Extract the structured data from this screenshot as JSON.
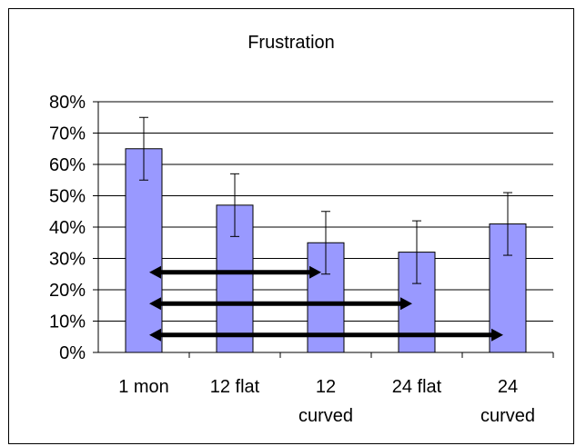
{
  "chart_data": {
    "type": "bar",
    "title": "Frustration",
    "xlabel": "",
    "ylabel": "",
    "ylim": [
      0,
      0.8
    ],
    "yticks": [
      "0%",
      "10%",
      "20%",
      "30%",
      "40%",
      "50%",
      "60%",
      "70%",
      "80%"
    ],
    "categories": [
      [
        "1 mon"
      ],
      [
        "12 flat"
      ],
      [
        "12",
        "curved"
      ],
      [
        "24 flat"
      ],
      [
        "24",
        "curved"
      ]
    ],
    "values": [
      0.65,
      0.47,
      0.35,
      0.32,
      0.41
    ],
    "error_low": [
      0.55,
      0.37,
      0.25,
      0.22,
      0.31
    ],
    "error_high": [
      0.75,
      0.57,
      0.45,
      0.42,
      0.51
    ],
    "comparisons": [
      {
        "from": 0,
        "to": 2,
        "y": 0.25
      },
      {
        "from": 0,
        "to": 3,
        "y": 0.15
      },
      {
        "from": 0,
        "to": 4,
        "y": 0.05
      }
    ],
    "grid": true,
    "legend": "none",
    "colors": {
      "bar_fill": "#9999ff",
      "bar_stroke": "#000000",
      "grid": "#000000"
    }
  }
}
